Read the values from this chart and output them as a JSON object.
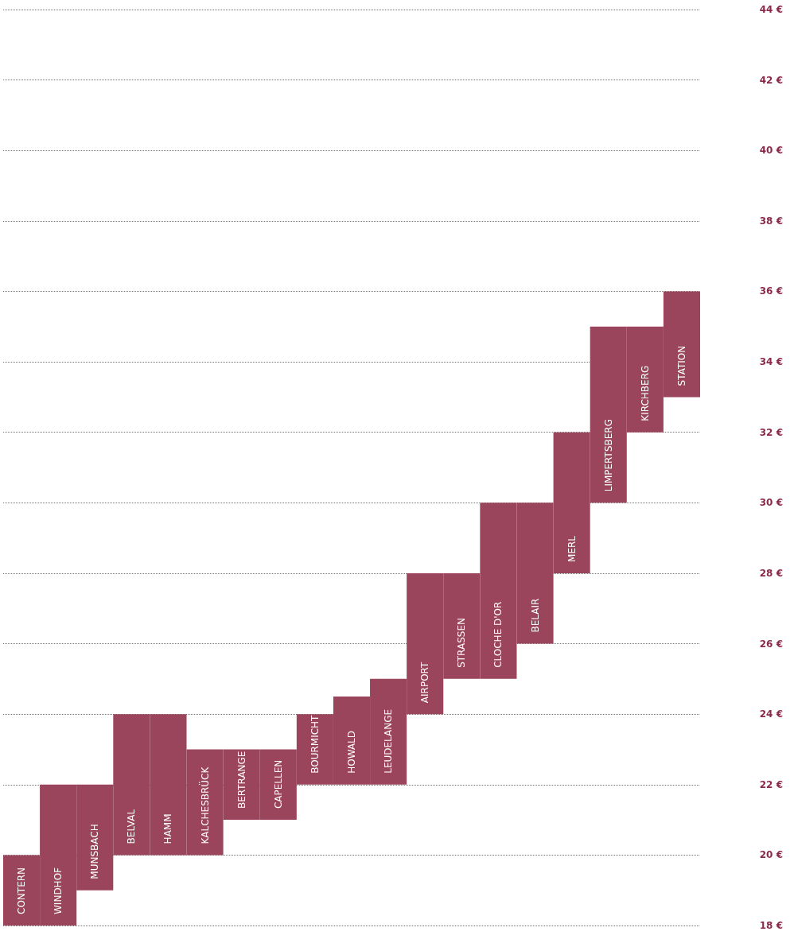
{
  "chart_data": {
    "type": "bar",
    "categories": [
      "CONTERN",
      "WINDHOF",
      "MUNSBACH",
      "BELVAL",
      "HAMM",
      "KALCHESBRÜCK",
      "BERTRANGE",
      "CAPELLEN",
      "BOURMICHT",
      "HOWALD",
      "LEUDELANGE",
      "AIRPORT",
      "STRASSEN",
      "CLOCHE D'OR",
      "BELAIR",
      "MERL",
      "LIMPERTSBERG",
      "KIRCHBERG",
      "STATION"
    ],
    "base": [
      18,
      18,
      19,
      20,
      20,
      20,
      21,
      21,
      22,
      22,
      22,
      24,
      25,
      25,
      26,
      28,
      30,
      32,
      33
    ],
    "values": [
      2,
      4,
      3,
      4,
      4,
      3,
      2,
      2,
      2,
      2.5,
      3,
      4,
      3,
      5,
      4,
      4,
      5,
      3,
      3
    ],
    "color": "#9b455c",
    "ylim": [
      18,
      44
    ],
    "yticks": [
      {
        "value": 18,
        "label": "18 €"
      },
      {
        "value": 20,
        "label": "20 €"
      },
      {
        "value": 22,
        "label": "22 €"
      },
      {
        "value": 24,
        "label": "24 €"
      },
      {
        "value": 26,
        "label": "26 €"
      },
      {
        "value": 28,
        "label": "28 €"
      },
      {
        "value": 30,
        "label": "30 €"
      },
      {
        "value": 32,
        "label": "32 €"
      },
      {
        "value": 34,
        "label": "34 €"
      },
      {
        "value": 36,
        "label": "36 €"
      },
      {
        "value": 38,
        "label": "38 €"
      },
      {
        "value": 40,
        "label": "40 €"
      },
      {
        "value": 42,
        "label": "42 €"
      },
      {
        "value": 44,
        "label": "44 €"
      }
    ],
    "grid": "y"
  }
}
